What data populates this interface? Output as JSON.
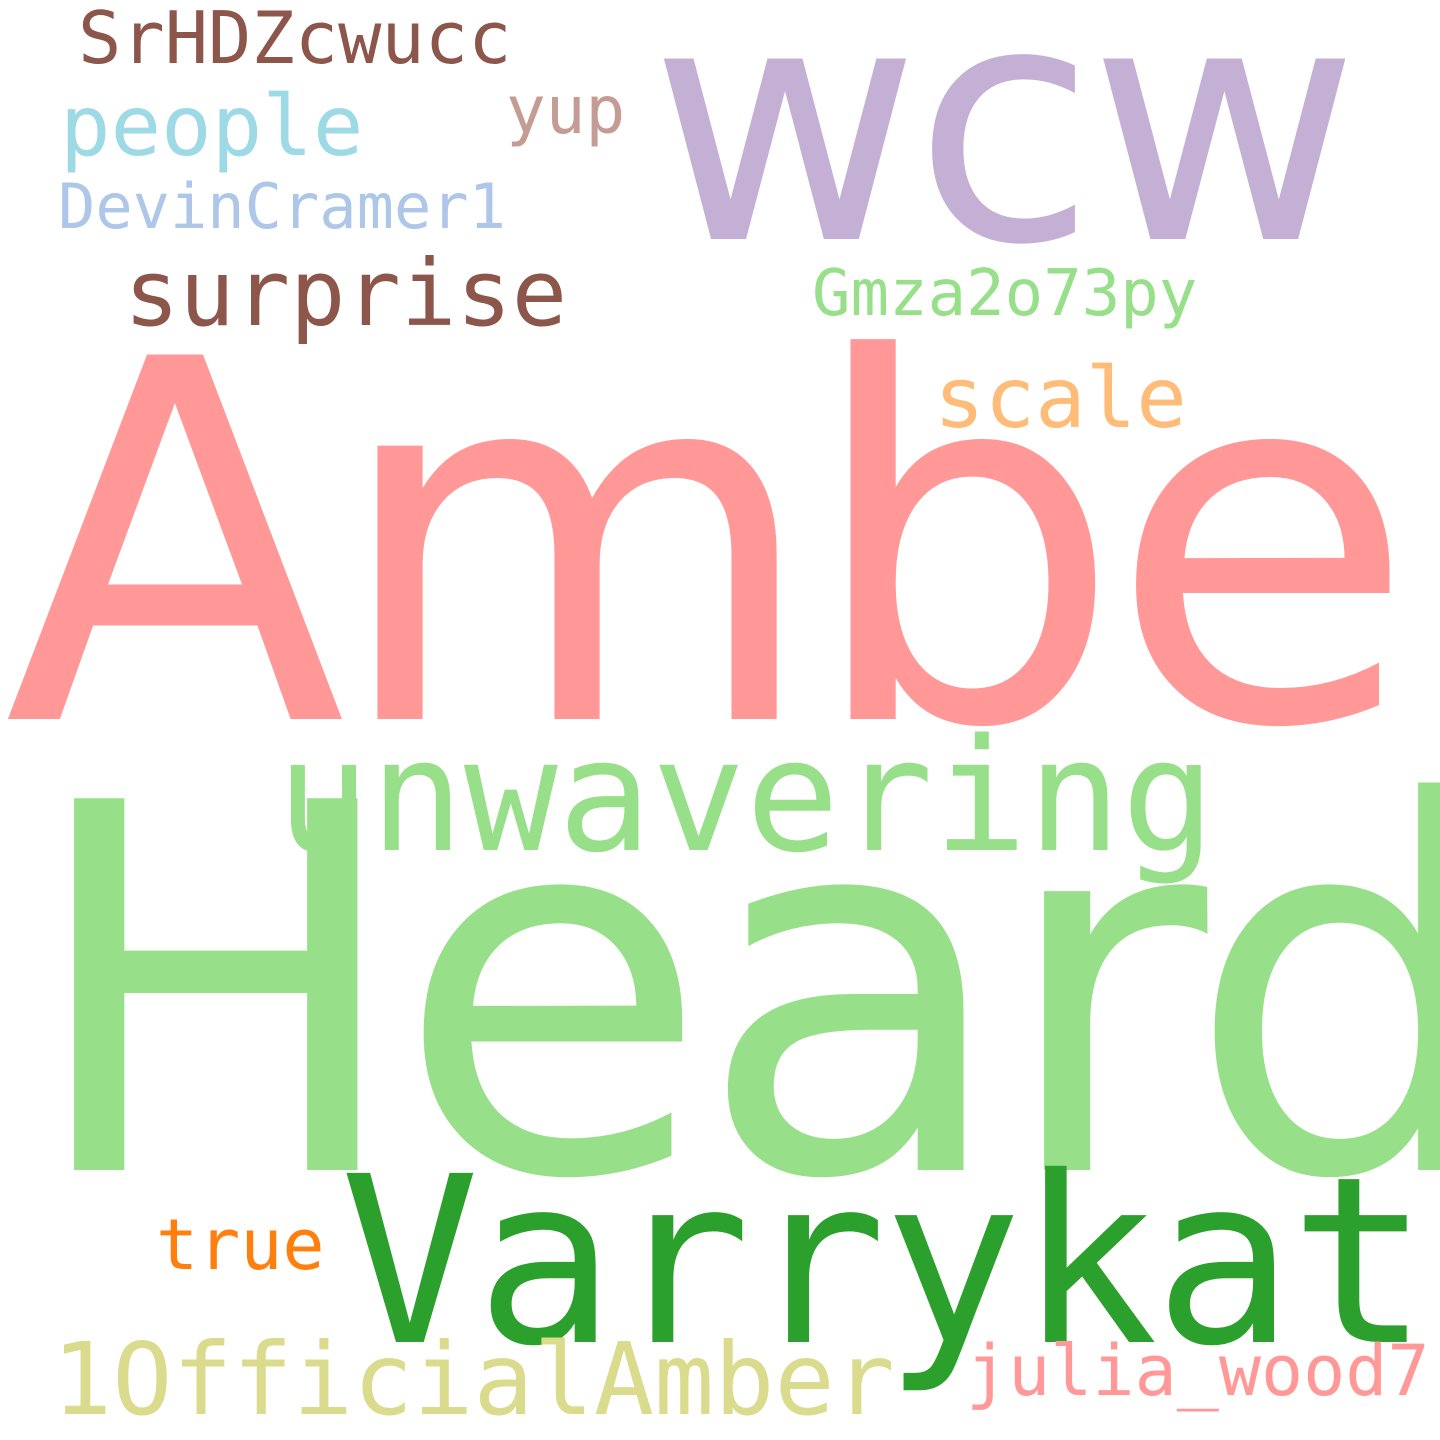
{
  "words": {
    "wcw": {
      "text": "wcw",
      "color": "#c5b0d5"
    },
    "srhdz": {
      "text": "SrHDZcwucc",
      "color": "#8c564b"
    },
    "people": {
      "text": "people",
      "color": "#9edae5"
    },
    "yup": {
      "text": "yup",
      "color": "#c49c94"
    },
    "devin": {
      "text": "DevinCramer1",
      "color": "#aec7e8"
    },
    "surprise": {
      "text": "surprise",
      "color": "#8c564b"
    },
    "gmza": {
      "text": "Gmza2o73py",
      "color": "#98df8a"
    },
    "scale": {
      "text": "scale",
      "color": "#ffbb78"
    },
    "amber": {
      "text": "Amber",
      "color": "#ff9896"
    },
    "unwavering": {
      "text": "unwavering",
      "color": "#98df8a"
    },
    "heard": {
      "text": "Heard",
      "color": "#98df8a"
    },
    "true": {
      "text": "true",
      "color": "#ff7f0e"
    },
    "varrykat": {
      "text": "Varrykat",
      "color": "#2ca02c"
    },
    "official": {
      "text": "1OfficialAmber",
      "color": "#dbdb8d"
    },
    "julia": {
      "text": "julia_wood7",
      "color": "#ff9896"
    }
  }
}
